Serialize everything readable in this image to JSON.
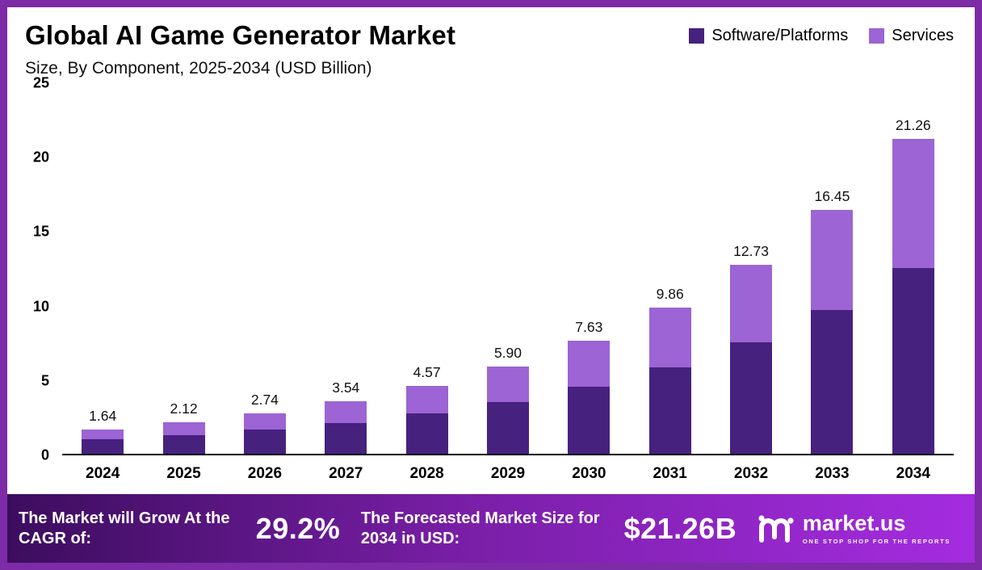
{
  "title": "Global AI Game Generator Market",
  "subtitle": "Size, By Component, 2025-2034 (USD Billion)",
  "colors": {
    "software": "#46217e",
    "services": "#9c64d4",
    "frame_border": "#7d2ba6",
    "footer_gradient_start": "#3c0d5e",
    "footer_gradient_end": "#a42ce0"
  },
  "legend": [
    {
      "label": "Software/Platforms",
      "color": "#46217e"
    },
    {
      "label": "Services",
      "color": "#9c64d4"
    }
  ],
  "chart_data": {
    "type": "bar",
    "stacked": true,
    "title": "Global AI Game Generator Market Size, By Component, 2025-2034 (USD Billion)",
    "categories": [
      "2024",
      "2025",
      "2026",
      "2027",
      "2028",
      "2029",
      "2030",
      "2031",
      "2032",
      "2033",
      "2034"
    ],
    "series": [
      {
        "name": "Software/Platforms",
        "color": "#46217e",
        "values": [
          0.97,
          1.25,
          1.62,
          2.09,
          2.7,
          3.48,
          4.5,
          5.82,
          7.51,
          9.71,
          12.54
        ]
      },
      {
        "name": "Services",
        "color": "#9c64d4",
        "values": [
          0.67,
          0.87,
          1.12,
          1.45,
          1.87,
          2.42,
          3.13,
          4.04,
          5.22,
          6.74,
          8.72
        ]
      }
    ],
    "totals": [
      1.64,
      2.12,
      2.74,
      3.54,
      4.57,
      5.9,
      7.63,
      9.86,
      12.73,
      16.45,
      21.26
    ],
    "totals_display": [
      "1.64",
      "2.12",
      "2.74",
      "3.54",
      "4.57",
      "5.90",
      "7.63",
      "9.86",
      "12.73",
      "16.45",
      "21.26"
    ],
    "xlabel": "",
    "ylabel": "",
    "ylim": [
      0,
      25
    ],
    "yticks": [
      0,
      5,
      10,
      15,
      20,
      25
    ],
    "grid": false,
    "legend_position": "top-right"
  },
  "footer": {
    "cagr_label": "The Market will Grow At the CAGR of:",
    "cagr_value": "29.2%",
    "forecast_label": "The Forecasted Market Size for 2034 in USD:",
    "forecast_value": "$21.26B",
    "brand": "market.us",
    "brand_tagline": "One Stop Shop For The Reports"
  }
}
